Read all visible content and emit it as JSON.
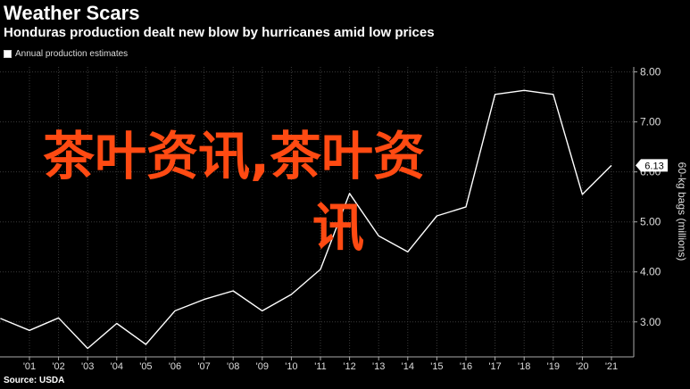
{
  "header": {
    "title": "Weather Scars",
    "subtitle": "Honduras production dealt new blow by hurricanes amid low prices",
    "legend_label": "Annual production estimates"
  },
  "footer": {
    "source": "Source: USDA"
  },
  "overlay": {
    "line1": "茶叶资讯,茶叶资",
    "line2": "讯",
    "color": "#ff4a12"
  },
  "chart_data": {
    "type": "line",
    "title": "Weather Scars",
    "subtitle": "Honduras production dealt new blow by hurricanes amid low prices",
    "ylabel": "60-kg bags (millions)",
    "xlabel": "",
    "ylim": [
      2.3,
      8.1
    ],
    "x_ticks": [
      "'01",
      "'02",
      "'03",
      "'04",
      "'05",
      "'06",
      "'07",
      "'08",
      "'09",
      "'10",
      "'11",
      "'12",
      "'13",
      "'14",
      "'15",
      "'16",
      "'17",
      "'18",
      "'19",
      "'20",
      "'21"
    ],
    "y_ticks": [
      "3.00",
      "4.00",
      "5.00",
      "6.00",
      "7.00",
      "8.00"
    ],
    "last_value_label": "6.13",
    "series": [
      {
        "name": "Annual production estimates",
        "color": "#ffffff",
        "x": [
          2000,
          2001,
          2002,
          2003,
          2004,
          2005,
          2006,
          2007,
          2008,
          2009,
          2010,
          2011,
          2012,
          2013,
          2014,
          2015,
          2016,
          2017,
          2018,
          2019,
          2020,
          2021
        ],
        "values": [
          3.07,
          2.83,
          3.08,
          2.47,
          2.97,
          2.55,
          3.22,
          3.45,
          3.62,
          3.22,
          3.55,
          4.05,
          5.57,
          4.72,
          4.4,
          5.12,
          5.3,
          7.55,
          7.63,
          7.55,
          5.55,
          6.13
        ]
      }
    ],
    "grid": true,
    "legend": "top-left"
  }
}
